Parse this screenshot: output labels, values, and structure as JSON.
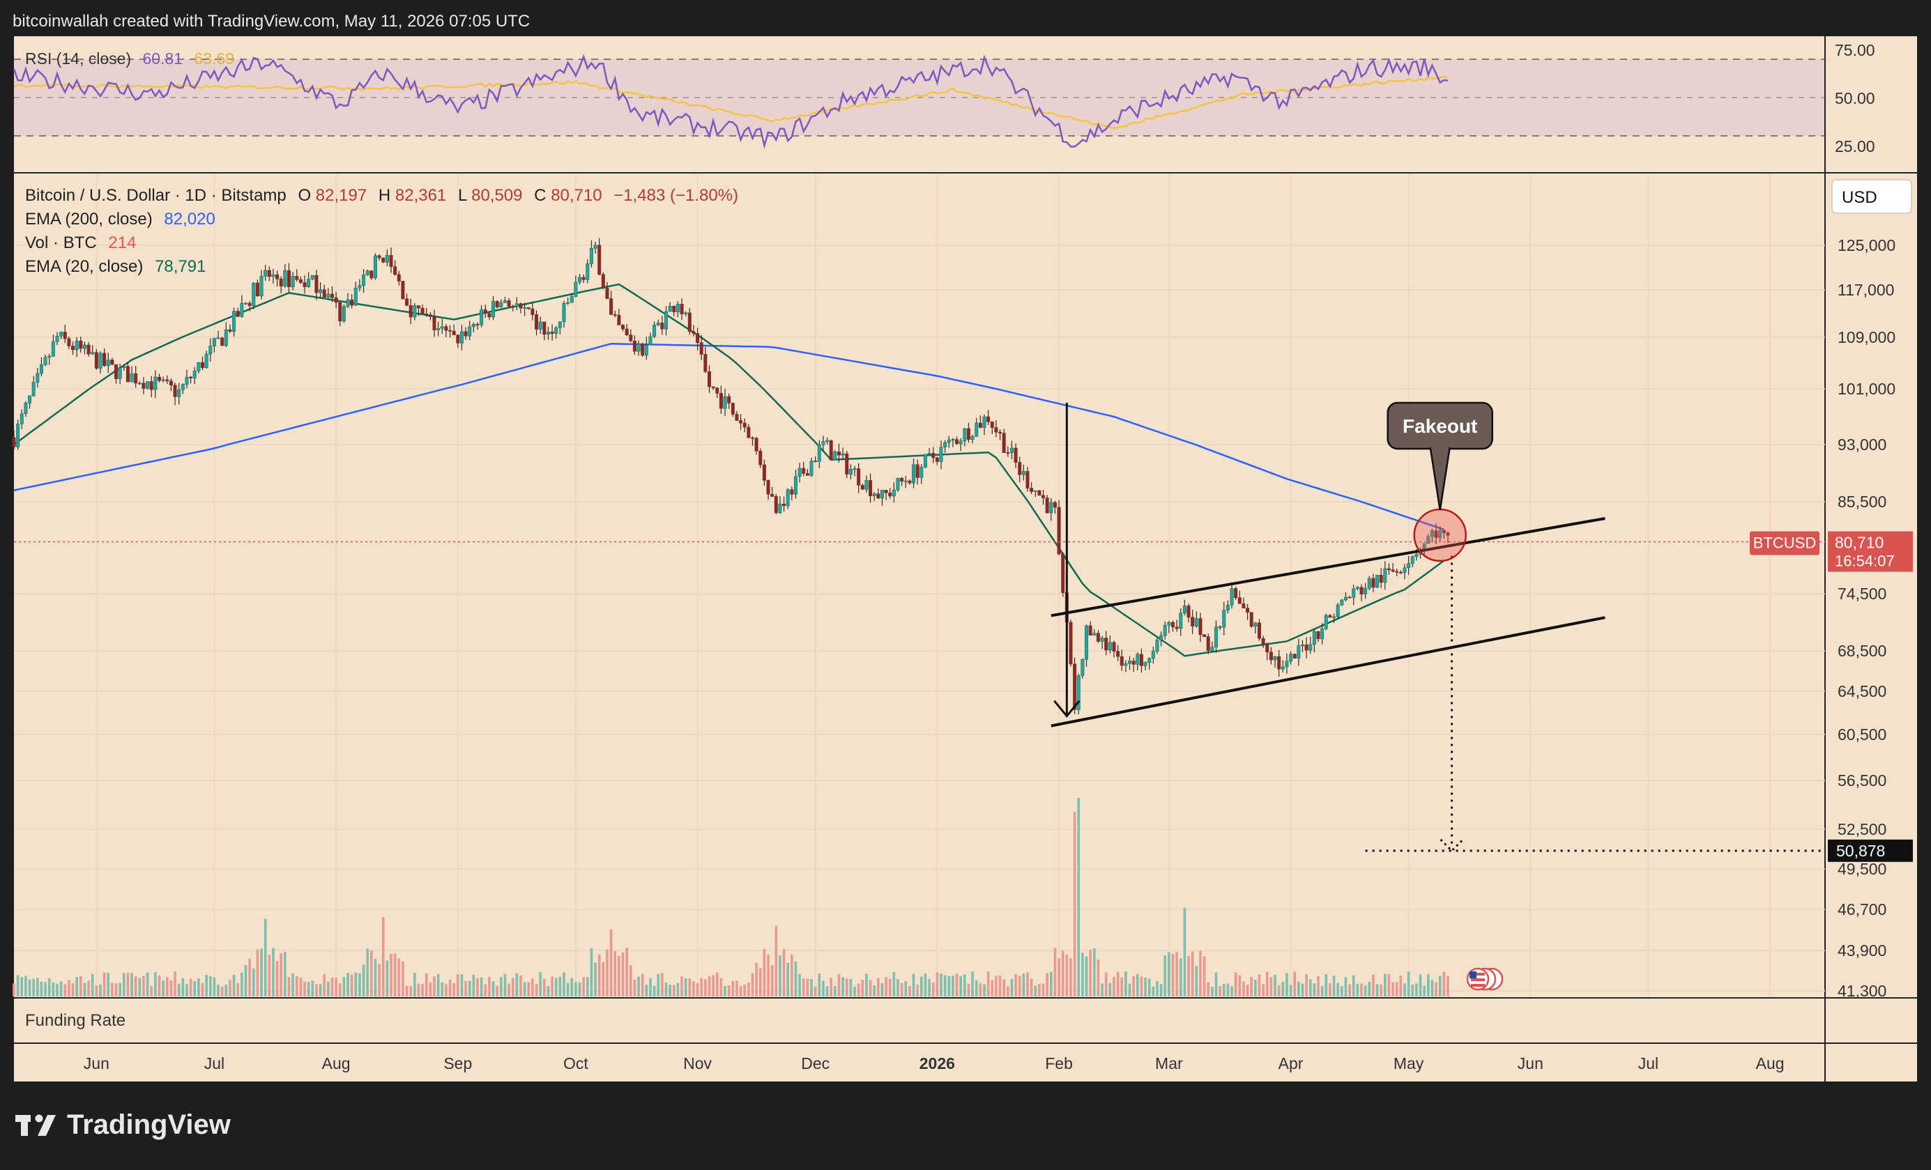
{
  "header": {
    "caption": "bitcoinwallah created with TradingView.com, May 11, 2026 07:05 UTC"
  },
  "footer": {
    "brand": "TradingView"
  },
  "colors": {
    "background": "#f5e2cc",
    "frame": "#1e1e1e",
    "bull_candle": "#26a69a",
    "bear_candle": "#ef5350",
    "ema200": "#2962ff",
    "ema20": "#106b4e",
    "rsi_line": "#7e57c2",
    "rsi_ma": "#f5c342",
    "rsi_band": "#e6cfd0",
    "price_tag": "#d9534f",
    "target_tag": "#111111"
  },
  "rsi_panel": {
    "legend_name": "RSI (14, close)",
    "legend_value": "60.81",
    "legend_ma_value": "63.69",
    "ticks": [
      "75.00",
      "50.00",
      "25.00"
    ]
  },
  "price_panel": {
    "legend": {
      "symbol": "Bitcoin / U.S. Dollar · 1D · Bitstamp",
      "o_label": "O",
      "o_value": "82,197",
      "h_label": "H",
      "h_value": "82,361",
      "l_label": "L",
      "l_value": "80,509",
      "c_label": "C",
      "c_value": "80,710",
      "change": "−1,483 (−1.80%)",
      "ema200_label": "EMA (200, close)",
      "ema200_value": "82,020",
      "vol_label": "Vol · BTC",
      "vol_value": "214",
      "ema20_label": "EMA (20, close)",
      "ema20_value": "78,791"
    },
    "currency": "USD",
    "price_ticks": [
      "125,000",
      "117,000",
      "109,000",
      "101,000",
      "93,000",
      "85,500",
      "74,500",
      "68,500",
      "64,500",
      "60,500",
      "56,500",
      "52,500",
      "49,500",
      "46,700",
      "43,900",
      "41,300"
    ],
    "current_price_label": "BTCUSD",
    "current_price": "80,710",
    "countdown": "16:54:07",
    "target_price": "50,878",
    "annotation": "Fakeout"
  },
  "funding_panel": {
    "label": "Funding Rate"
  },
  "time_axis": {
    "labels": [
      "Jun",
      "Jul",
      "Aug",
      "Sep",
      "Oct",
      "Nov",
      "Dec",
      "2026",
      "Feb",
      "Mar",
      "Apr",
      "May",
      "Jun",
      "Jul",
      "Aug"
    ]
  },
  "chart_data": {
    "type": "candlestick",
    "title": "Bitcoin / U.S. Dollar · 1D · Bitstamp",
    "xlabel": "",
    "ylabel": "",
    "x_range": [
      "2025-05-11",
      "2026-08-15"
    ],
    "y_range_price": [
      41300,
      125000
    ],
    "y_range_rsi": [
      25,
      75
    ],
    "price_path": [
      [
        "2025-05-11",
        94000
      ],
      [
        "2025-05-22",
        109000
      ],
      [
        "2025-06-05",
        104000
      ],
      [
        "2025-06-22",
        100500
      ],
      [
        "2025-07-03",
        109000
      ],
      [
        "2025-07-14",
        119500
      ],
      [
        "2025-07-28",
        118000
      ],
      [
        "2025-08-02",
        113000
      ],
      [
        "2025-08-13",
        123500
      ],
      [
        "2025-08-20",
        114000
      ],
      [
        "2025-08-31",
        108500
      ],
      [
        "2025-09-13",
        115500
      ],
      [
        "2025-09-25",
        109000
      ],
      [
        "2025-10-06",
        124500
      ],
      [
        "2025-10-10",
        112000
      ],
      [
        "2025-10-17",
        106500
      ],
      [
        "2025-10-27",
        115500
      ],
      [
        "2025-11-04",
        101500
      ],
      [
        "2025-11-14",
        95000
      ],
      [
        "2025-11-21",
        84500
      ],
      [
        "2025-12-03",
        93000
      ],
      [
        "2025-12-18",
        86000
      ],
      [
        "2026-01-05",
        93500
      ],
      [
        "2026-01-14",
        97000
      ],
      [
        "2026-01-22",
        89500
      ],
      [
        "2026-01-31",
        84000
      ],
      [
        "2026-02-05",
        63000
      ],
      [
        "2026-02-08",
        70500
      ],
      [
        "2026-02-20",
        67000
      ],
      [
        "2026-03-05",
        72500
      ],
      [
        "2026-03-12",
        69000
      ],
      [
        "2026-03-17",
        74500
      ],
      [
        "2026-03-30",
        66500
      ],
      [
        "2026-04-15",
        74000
      ],
      [
        "2026-04-28",
        77500
      ],
      [
        "2026-05-08",
        82000
      ],
      [
        "2026-05-11",
        80710
      ]
    ],
    "ema200_path": [
      [
        "2025-05-11",
        87000
      ],
      [
        "2025-07-01",
        92500
      ],
      [
        "2025-09-01",
        101500
      ],
      [
        "2025-10-10",
        108000
      ],
      [
        "2025-11-20",
        107500
      ],
      [
        "2026-01-01",
        103000
      ],
      [
        "2026-02-15",
        97000
      ],
      [
        "2026-03-31",
        88500
      ],
      [
        "2026-05-11",
        82020
      ]
    ],
    "ema20_path": [
      [
        "2025-05-11",
        93000
      ],
      [
        "2025-06-10",
        105500
      ],
      [
        "2025-07-20",
        116500
      ],
      [
        "2025-08-31",
        112000
      ],
      [
        "2025-10-12",
        118000
      ],
      [
        "2025-11-10",
        105500
      ],
      [
        "2025-12-05",
        91000
      ],
      [
        "2026-01-15",
        92000
      ],
      [
        "2026-02-08",
        75000
      ],
      [
        "2026-03-05",
        68000
      ],
      [
        "2026-03-31",
        69500
      ],
      [
        "2026-04-30",
        75000
      ],
      [
        "2026-05-11",
        78791
      ]
    ],
    "volume_spike_dates": [
      "2025-07-14",
      "2025-08-13",
      "2025-10-10",
      "2025-11-21",
      "2026-02-05",
      "2026-02-06",
      "2026-03-05"
    ],
    "rsi_path": [
      [
        "2025-05-11",
        64
      ],
      [
        "2025-06-15",
        52
      ],
      [
        "2025-07-14",
        73
      ],
      [
        "2025-08-02",
        45
      ],
      [
        "2025-08-13",
        66
      ],
      [
        "2025-09-01",
        42
      ],
      [
        "2025-10-06",
        74
      ],
      [
        "2025-10-17",
        39
      ],
      [
        "2025-11-21",
        23
      ],
      [
        "2025-12-10",
        50
      ],
      [
        "2026-01-14",
        73
      ],
      [
        "2026-02-05",
        20
      ],
      [
        "2026-02-20",
        42
      ],
      [
        "2026-03-17",
        64
      ],
      [
        "2026-03-30",
        47
      ],
      [
        "2026-04-20",
        69
      ],
      [
        "2026-05-05",
        70
      ],
      [
        "2026-05-11",
        60.81
      ]
    ],
    "rsi_ma_path": [
      [
        "2025-05-11",
        58
      ],
      [
        "2025-07-01",
        57
      ],
      [
        "2025-08-15",
        56
      ],
      [
        "2025-10-01",
        60
      ],
      [
        "2025-11-20",
        35
      ],
      [
        "2026-01-05",
        55
      ],
      [
        "2026-02-15",
        30
      ],
      [
        "2026-03-20",
        52
      ],
      [
        "2026-04-25",
        60
      ],
      [
        "2026-05-11",
        63.69
      ]
    ],
    "channel": {
      "upper": [
        [
          "2026-01-30",
          72200
        ],
        [
          "2026-06-20",
          83500
        ]
      ],
      "lower": [
        [
          "2026-01-30",
          61300
        ],
        [
          "2026-06-20",
          72000
        ]
      ]
    },
    "projection": {
      "from": [
        "2026-05-12",
        80710
      ],
      "to": [
        "2026-05-12",
        50878
      ],
      "target": 50878
    },
    "annotations": [
      {
        "text": "Fakeout",
        "date": "2026-05-09",
        "price": 81500
      }
    ]
  }
}
